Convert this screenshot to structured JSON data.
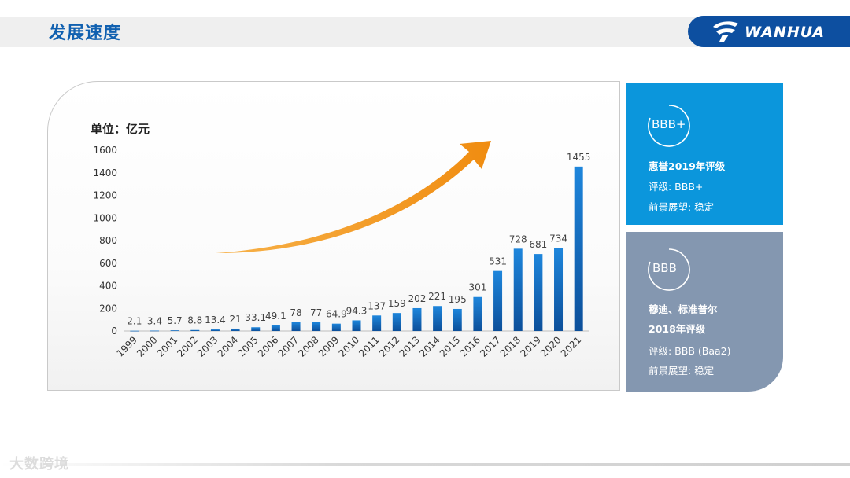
{
  "header": {
    "title": "发展速度",
    "logo_text": "WANHUA"
  },
  "chart_data": {
    "type": "bar",
    "unit_label": "单位：亿元",
    "categories": [
      "1999",
      "2000",
      "2001",
      "2002",
      "2003",
      "2004",
      "2005",
      "2006",
      "2007",
      "2008",
      "2009",
      "2010",
      "2011",
      "2012",
      "2013",
      "2014",
      "2015",
      "2016",
      "2017",
      "2018",
      "2019",
      "2020",
      "2021"
    ],
    "values": [
      2.1,
      3.4,
      5.7,
      8.8,
      13.4,
      21,
      33.1,
      49.1,
      78,
      77,
      64.9,
      94.3,
      137,
      159,
      202,
      221,
      195,
      301,
      531,
      728,
      681,
      734,
      1455
    ],
    "value_labels": [
      "2.1",
      "3.4",
      "5.7",
      "8.8",
      "13.4",
      "21",
      "33.1",
      "49.1",
      "78",
      "77",
      "64.9",
      "94.3",
      "137",
      "159",
      "202",
      "221",
      "195",
      "301",
      "531",
      "728",
      "681",
      "734",
      "1455"
    ],
    "ylim": [
      0,
      1600
    ],
    "yticks": [
      0,
      200,
      400,
      600,
      800,
      1000,
      1200,
      1400,
      1600
    ],
    "grid": false,
    "bar_color": "#1a78cc",
    "arrow_color": "#f39a1e"
  },
  "ratings": [
    {
      "badge": "BBB+",
      "agency": "惠誉",
      "year_line": "2019年评级",
      "rating_line": "评级: BBB+",
      "outlook_line": "前景展望: 稳定",
      "color": "#0b96dc"
    },
    {
      "badge": "BBB",
      "agency": "穆迪、标准普尔",
      "year_line": "2018年评级",
      "rating_line": "评级: BBB (Baa2)",
      "outlook_line": "前景展望: 稳定",
      "color": "#8497b0"
    }
  ],
  "watermark": "大数跨境"
}
